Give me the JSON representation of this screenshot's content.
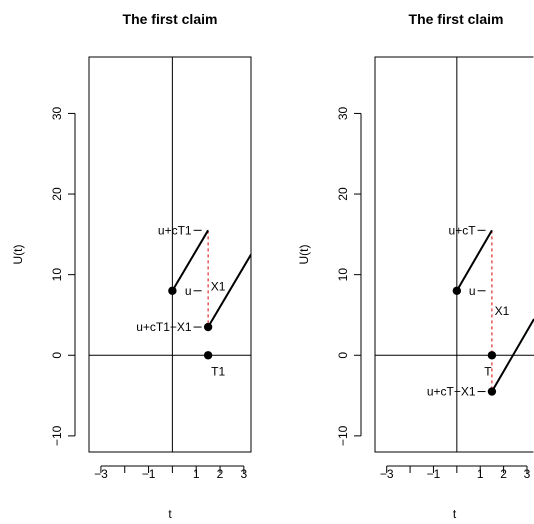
{
  "chart_data": [
    {
      "type": "line",
      "title": "The first claim",
      "xlabel": "t",
      "ylabel": "U(t)",
      "xlim": [
        -3.5,
        3.3
      ],
      "ylim": [
        -12,
        37
      ],
      "xticks": [
        -3,
        -1,
        1,
        2,
        3
      ],
      "xtick_labels": [
        "−3",
        "−1",
        "1",
        "2",
        "3"
      ],
      "xticks_minor": [
        -2,
        0
      ],
      "yticks": [
        -10,
        0,
        10,
        20,
        30
      ],
      "ytick_labels": [
        "−10",
        "0",
        "10",
        "20",
        "30"
      ],
      "series": [
        {
          "x": [
            0,
            1.5
          ],
          "y": [
            8,
            15.5
          ]
        },
        {
          "x": [
            1.5,
            3.3
          ],
          "y": [
            3.5,
            12.5
          ]
        }
      ],
      "jump": {
        "x": 1.5,
        "y": [
          15.5,
          3.5
        ],
        "style": "dashed",
        "color": "#dd0000"
      },
      "points": [
        {
          "x": 0,
          "y": 8
        },
        {
          "x": 1.5,
          "y": 3.5
        },
        {
          "x": 1.5,
          "y": 0
        }
      ],
      "reference_lines": {
        "vertical_x": 0,
        "horizontal_y": 0
      },
      "axis_marks": [
        {
          "label": "u+cT1",
          "y": 15.5
        },
        {
          "label": "u",
          "y": 8
        },
        {
          "label": "u+cT1−X1",
          "y": 3.5
        }
      ],
      "annotations": [
        {
          "text": "X1",
          "x": 1.5,
          "y": 8.5
        },
        {
          "text": "T1",
          "x": 1.5,
          "y": -2
        }
      ]
    },
    {
      "type": "line",
      "title": "The first claim",
      "xlabel": "t",
      "ylabel": "U(t)",
      "xlim": [
        -3.5,
        3.3
      ],
      "ylim": [
        -12,
        37
      ],
      "xticks": [
        -3,
        -1,
        1,
        2,
        3
      ],
      "xtick_labels": [
        "−3",
        "−1",
        "1",
        "2",
        "3"
      ],
      "xticks_minor": [
        -2,
        0
      ],
      "yticks": [
        -10,
        0,
        10,
        20,
        30
      ],
      "ytick_labels": [
        "−10",
        "0",
        "10",
        "20",
        "30"
      ],
      "series": [
        {
          "x": [
            0,
            1.5
          ],
          "y": [
            8,
            15.5
          ]
        },
        {
          "x": [
            1.5,
            3.3
          ],
          "y": [
            -4.5,
            4.5
          ]
        }
      ],
      "jump": {
        "x": 1.5,
        "y": [
          15.5,
          -4.5
        ],
        "style": "dashed",
        "color": "#dd0000"
      },
      "points": [
        {
          "x": 0,
          "y": 8
        },
        {
          "x": 1.5,
          "y": 0
        },
        {
          "x": 1.5,
          "y": -4.5
        }
      ],
      "reference_lines": {
        "vertical_x": 0,
        "horizontal_y": 0
      },
      "axis_marks": [
        {
          "label": "u+cT",
          "y": 15.5
        },
        {
          "label": "u",
          "y": 8
        },
        {
          "label": "u+cT−X1",
          "y": -4.5
        }
      ],
      "annotations": [
        {
          "text": "X1",
          "x": 1.5,
          "y": 5.5
        },
        {
          "text": "T",
          "x": 0.9,
          "y": -2
        }
      ]
    }
  ]
}
